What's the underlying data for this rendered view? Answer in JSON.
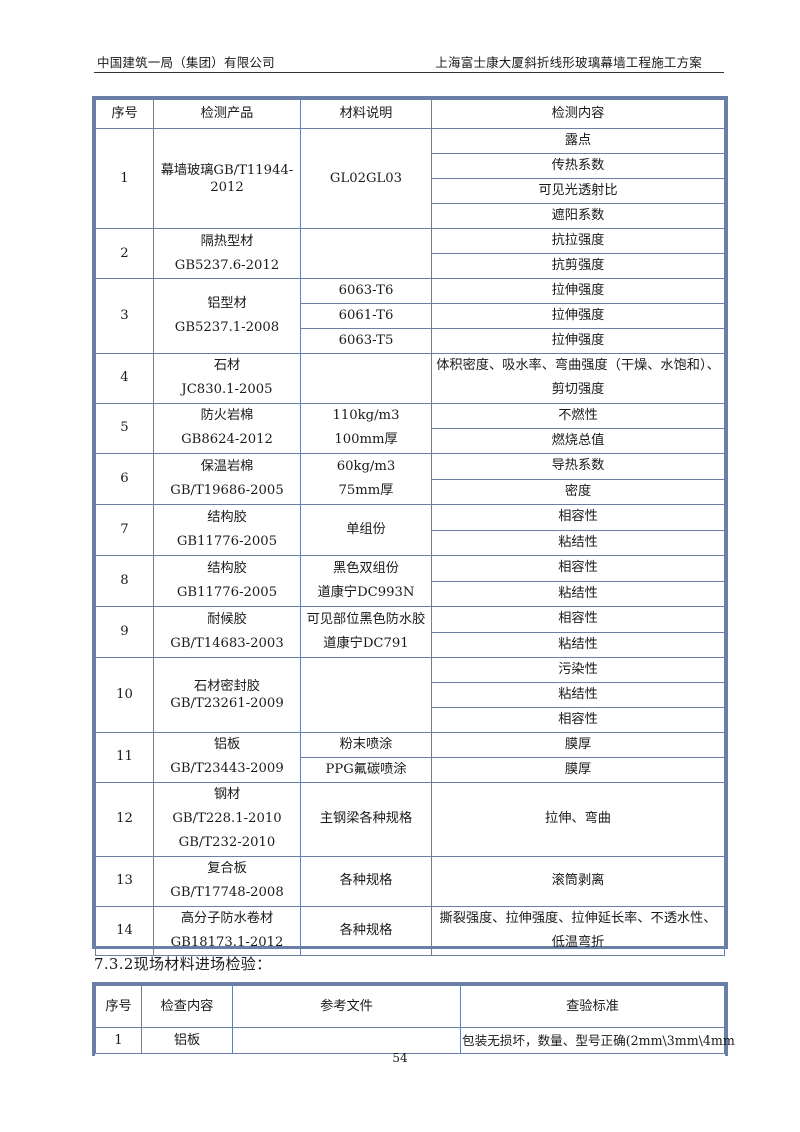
{
  "header": {
    "left": "中国建筑一局（集团）有限公司",
    "right": "上海富士康大厦斜折线形玻璃幕墙工程施工方案"
  },
  "table1": {
    "columns": [
      "序号",
      "检测产品",
      "材料说明",
      "检测内容"
    ],
    "rows": [
      {
        "no": "1",
        "product": "幕墙玻璃GB/T11944-2012",
        "materials": [
          "GL02GL03"
        ],
        "contents": [
          "露点",
          "传热系数",
          "可见光透射比",
          "遮阳系数"
        ]
      },
      {
        "no": "2",
        "product_lines": [
          "隔热型材",
          "GB5237.6-2012"
        ],
        "materials": [
          ""
        ],
        "contents": [
          "抗拉强度",
          "抗剪强度"
        ]
      },
      {
        "no": "3",
        "product_lines": [
          "铝型材",
          "GB5237.1-2008"
        ],
        "materials": [
          "6063-T6",
          "6061-T6",
          "6063-T5"
        ],
        "contents": [
          "拉伸强度",
          "拉伸强度",
          "拉伸强度"
        ]
      },
      {
        "no": "4",
        "product_lines": [
          "石材",
          "JC830.1-2005"
        ],
        "materials": [
          ""
        ],
        "contents": [
          "体积密度、吸水率、弯曲强度（干燥、水饱和）、剪切强度"
        ]
      },
      {
        "no": "5",
        "product_lines": [
          "防火岩棉",
          "GB8624-2012"
        ],
        "materials": [
          "110kg/m3",
          "100mm厚"
        ],
        "contents": [
          "不燃性",
          "燃烧总值"
        ]
      },
      {
        "no": "6",
        "product_lines": [
          "保温岩棉",
          "GB/T19686-2005"
        ],
        "materials": [
          "60kg/m3",
          "75mm厚"
        ],
        "contents": [
          "导热系数",
          "密度"
        ]
      },
      {
        "no": "7",
        "product_lines": [
          "结构胶",
          "GB11776-2005"
        ],
        "materials": [
          "单组份"
        ],
        "contents": [
          "相容性",
          "粘结性"
        ]
      },
      {
        "no": "8",
        "product_lines": [
          "结构胶",
          "GB11776-2005"
        ],
        "materials": [
          "黑色双组份",
          "道康宁DC993N"
        ],
        "contents": [
          "相容性",
          "粘结性"
        ]
      },
      {
        "no": "9",
        "product_lines": [
          "耐候胶",
          "GB/T14683-2003"
        ],
        "materials": [
          "可见部位黑色防水胶",
          "道康宁DC791"
        ],
        "contents": [
          "相容性",
          "粘结性"
        ]
      },
      {
        "no": "10",
        "product": "石材密封胶GB/T23261-2009",
        "materials": [
          ""
        ],
        "contents": [
          "污染性",
          "粘结性",
          "相容性"
        ]
      },
      {
        "no": "11",
        "product_lines": [
          "铝板",
          "GB/T23443-2009"
        ],
        "materials": [
          "粉末喷涂",
          "PPG氟碳喷涂"
        ],
        "contents": [
          "膜厚",
          "膜厚"
        ]
      },
      {
        "no": "12",
        "product_lines": [
          "钢材",
          "GB/T228.1-2010",
          "GB/T232-2010"
        ],
        "materials": [
          "主钢梁各种规格"
        ],
        "contents": [
          "拉伸、弯曲"
        ]
      },
      {
        "no": "13",
        "product_lines": [
          "复合板",
          "GB/T17748-2008"
        ],
        "materials": [
          "各种规格"
        ],
        "contents": [
          "滚筒剥离"
        ]
      },
      {
        "no": "14",
        "product_lines": [
          "高分子防水卷材",
          "GB18173.1-2012"
        ],
        "materials": [
          "各种规格"
        ],
        "contents": [
          "撕裂强度、拉伸强度、拉伸延长率、不透水性、低温弯折"
        ]
      }
    ]
  },
  "section_title": "7.3.2现场材料进场检验：",
  "table2": {
    "columns": [
      "序号",
      "检查内容",
      "参考文件",
      "查验标准"
    ],
    "rows": [
      {
        "no": "1",
        "item": "铝板",
        "ref": "",
        "standard": "包装无损坏，数量、型号正确(2mm\\3mm\\4mm"
      }
    ]
  },
  "page_number": "54"
}
